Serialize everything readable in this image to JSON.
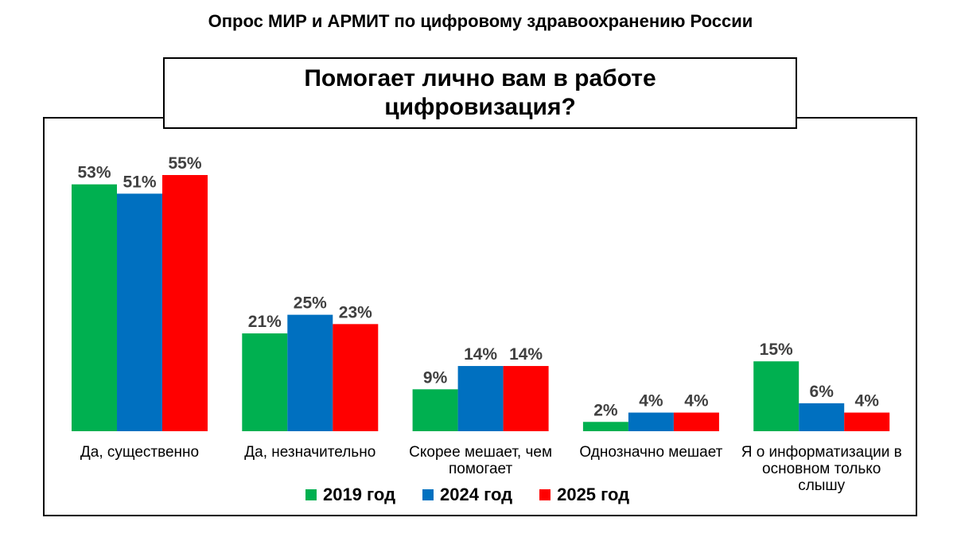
{
  "page": {
    "title": "Опрос МИР и АРМИТ по цифровому здравоохранению России",
    "question": "Помогает лично вам в работе цифровизация?"
  },
  "chart_data": {
    "type": "bar",
    "categories": [
      "Да, существенно",
      "Да, незначительно",
      "Скорее мешает, чем помогает",
      "Однозначно мешает",
      "Я о информатизации в основном только слышу"
    ],
    "series": [
      {
        "name": "2019 год",
        "color": "#00B050",
        "values": [
          53,
          21,
          9,
          2,
          15
        ]
      },
      {
        "name": "2024 год",
        "color": "#0070C0",
        "values": [
          51,
          25,
          14,
          4,
          6
        ]
      },
      {
        "name": "2025 год",
        "color": "#FF0000",
        "values": [
          55,
          23,
          14,
          4,
          4
        ]
      }
    ],
    "value_suffix": "%",
    "ylim": [
      0,
      55
    ],
    "grid": false,
    "legend_position": "bottom"
  }
}
